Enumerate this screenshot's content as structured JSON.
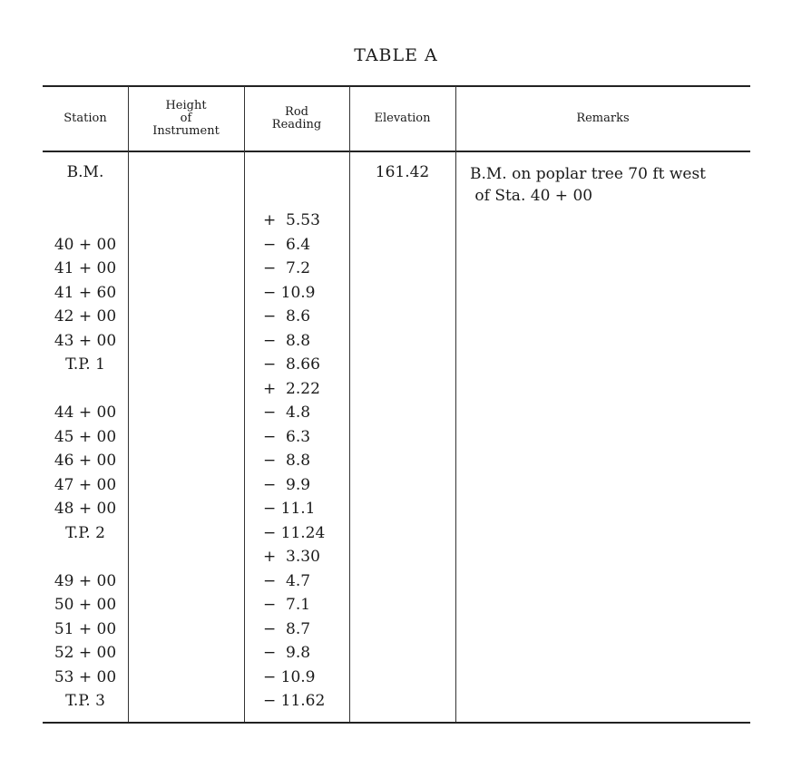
{
  "title": "TABLE A",
  "headers": {
    "station": "Station",
    "hi": "Height\nof\nInstrument",
    "rod": "Rod\nReading",
    "elevation": "Elevation",
    "remarks": "Remarks"
  },
  "bm": {
    "station": "B.M.",
    "elevation": "161.42",
    "remarks": "B.M. on poplar tree 70 ft west\n of Sta. 40 + 00"
  },
  "rows": [
    {
      "station": "",
      "rod": "+  5.53"
    },
    {
      "station": "40 + 00",
      "rod": "−  6.4"
    },
    {
      "station": "41 + 00",
      "rod": "−  7.2"
    },
    {
      "station": "41 + 60",
      "rod": "− 10.9"
    },
    {
      "station": "42 + 00",
      "rod": "−  8.6"
    },
    {
      "station": "43 + 00",
      "rod": "−  8.8"
    },
    {
      "station": "T.P. 1",
      "rod": "−  8.66"
    },
    {
      "station": "",
      "rod": "+  2.22"
    },
    {
      "station": "44 + 00",
      "rod": "−  4.8"
    },
    {
      "station": "45 + 00",
      "rod": "−  6.3"
    },
    {
      "station": "46 + 00",
      "rod": "−  8.8"
    },
    {
      "station": "47 + 00",
      "rod": "−  9.9"
    },
    {
      "station": "48 + 00",
      "rod": "− 11.1"
    },
    {
      "station": "T.P. 2",
      "rod": "− 11.24"
    },
    {
      "station": "",
      "rod": "+  3.30"
    },
    {
      "station": "49 + 00",
      "rod": "−  4.7"
    },
    {
      "station": "50 + 00",
      "rod": "−  7.1"
    },
    {
      "station": "51 + 00",
      "rod": "−  8.7"
    },
    {
      "station": "52 + 00",
      "rod": "−  9.8"
    },
    {
      "station": "53 + 00",
      "rod": "− 10.9"
    },
    {
      "station": "T.P. 3",
      "rod": "− 11.62"
    }
  ]
}
